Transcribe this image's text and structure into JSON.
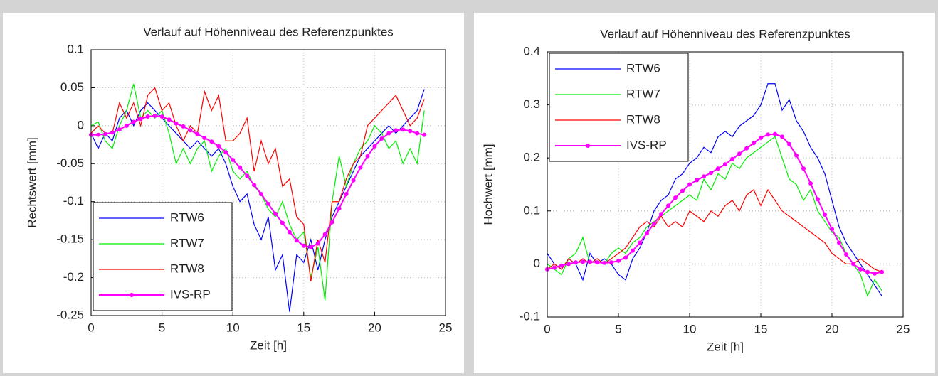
{
  "chart_data": [
    {
      "type": "line",
      "title": "Verlauf auf Höhenniveau des Referenzpunktes",
      "xlabel": "Zeit [h]",
      "ylabel": "Rechtswert [mm]",
      "x": [
        0,
        0.5,
        1,
        1.5,
        2,
        2.5,
        3,
        3.5,
        4,
        4.5,
        5,
        5.5,
        6,
        6.5,
        7,
        7.5,
        8,
        8.5,
        9,
        9.5,
        10,
        10.5,
        11,
        11.5,
        12,
        12.5,
        13,
        13.5,
        14,
        14.5,
        15,
        15.5,
        16,
        16.5,
        17,
        17.5,
        18,
        18.5,
        19,
        19.5,
        20,
        20.5,
        21,
        21.5,
        22,
        22.5,
        23,
        23.5
      ],
      "series": [
        {
          "name": "RTW6",
          "color": "#0000ff",
          "values": [
            -0.01,
            -0.03,
            -0.01,
            -0.02,
            0.01,
            0.02,
            0,
            0.02,
            0.03,
            0.02,
            0.01,
            0,
            -0.01,
            -0.02,
            -0.03,
            -0.02,
            -0.03,
            -0.04,
            -0.03,
            -0.05,
            -0.08,
            -0.1,
            -0.09,
            -0.13,
            -0.15,
            -0.12,
            -0.19,
            -0.17,
            -0.245,
            -0.17,
            -0.18,
            -0.15,
            -0.19,
            -0.15,
            -0.12,
            -0.1,
            -0.08,
            -0.06,
            -0.04,
            -0.03,
            -0.02,
            -0.01,
            0,
            -0.01,
            0,
            0.01,
            0.02,
            0.048
          ]
        },
        {
          "name": "RTW7",
          "color": "#00ee00",
          "values": [
            0,
            0.005,
            -0.02,
            -0.03,
            0,
            0.02,
            0.055,
            0.01,
            0.02,
            0.01,
            0.02,
            -0.01,
            -0.05,
            -0.03,
            -0.05,
            -0.03,
            -0.02,
            -0.06,
            -0.04,
            -0.03,
            -0.06,
            -0.07,
            -0.06,
            -0.08,
            -0.09,
            -0.11,
            -0.12,
            -0.1,
            -0.13,
            -0.15,
            -0.14,
            -0.2,
            -0.16,
            -0.23,
            -0.1,
            -0.04,
            -0.08,
            -0.05,
            -0.03,
            -0.02,
            0,
            -0.01,
            -0.03,
            -0.02,
            -0.05,
            -0.03,
            -0.05,
            0.02
          ]
        },
        {
          "name": "RTW8",
          "color": "#ff0000",
          "values": [
            -0.01,
            0,
            -0.01,
            -0.01,
            0.03,
            0.01,
            0.03,
            0,
            0.04,
            0.05,
            0.02,
            0.03,
            0,
            -0.02,
            0,
            -0.01,
            0.045,
            0.02,
            0.04,
            -0.02,
            -0.02,
            -0.01,
            0.01,
            -0.06,
            -0.02,
            -0.05,
            -0.03,
            -0.08,
            -0.07,
            -0.12,
            -0.13,
            -0.205,
            -0.15,
            -0.18,
            -0.1,
            -0.1,
            -0.07,
            -0.05,
            -0.04,
            0,
            0.01,
            0.02,
            0.03,
            0.04,
            0.02,
            0,
            0.01,
            0.035
          ]
        },
        {
          "name": "IVS-RP",
          "color": "#ff00ff",
          "marker": "o",
          "values": [
            -0.012,
            -0.012,
            -0.011,
            -0.009,
            -0.005,
            0,
            0.005,
            0.009,
            0.012,
            0.013,
            0.012,
            0.008,
            0.003,
            -0.001,
            -0.006,
            -0.011,
            -0.016,
            -0.021,
            -0.027,
            -0.035,
            -0.045,
            -0.055,
            -0.066,
            -0.078,
            -0.09,
            -0.103,
            -0.116,
            -0.128,
            -0.14,
            -0.151,
            -0.158,
            -0.16,
            -0.155,
            -0.143,
            -0.127,
            -0.109,
            -0.09,
            -0.072,
            -0.055,
            -0.04,
            -0.027,
            -0.017,
            -0.01,
            -0.006,
            -0.005,
            -0.007,
            -0.01,
            -0.012
          ]
        }
      ],
      "xlim": [
        0,
        25
      ],
      "xticks": [
        0,
        5,
        10,
        15,
        20,
        25
      ],
      "ylim": [
        -0.25,
        0.1
      ],
      "yticks": [
        -0.25,
        -0.2,
        -0.15,
        -0.1,
        -0.05,
        0,
        0.05,
        0.1
      ],
      "grid": true,
      "legend": "lower left"
    },
    {
      "type": "line",
      "title": "Verlauf auf Höhenniveau des Referenzpunktes",
      "xlabel": "Zeit [h]",
      "ylabel": "Hochwert [mm]",
      "x": [
        0,
        0.5,
        1,
        1.5,
        2,
        2.5,
        3,
        3.5,
        4,
        4.5,
        5,
        5.5,
        6,
        6.5,
        7,
        7.5,
        8,
        8.5,
        9,
        9.5,
        10,
        10.5,
        11,
        11.5,
        12,
        12.5,
        13,
        13.5,
        14,
        14.5,
        15,
        15.5,
        16,
        16.5,
        17,
        17.5,
        18,
        18.5,
        19,
        19.5,
        20,
        20.5,
        21,
        21.5,
        22,
        22.5,
        23,
        23.5
      ],
      "series": [
        {
          "name": "RTW6",
          "color": "#0000ff",
          "values": [
            0.02,
            0,
            -0.01,
            0.01,
            0,
            -0.03,
            0.02,
            0,
            0.01,
            0,
            -0.02,
            -0.03,
            0.01,
            0.03,
            0.06,
            0.1,
            0.12,
            0.13,
            0.16,
            0.17,
            0.19,
            0.2,
            0.22,
            0.21,
            0.24,
            0.25,
            0.24,
            0.26,
            0.27,
            0.28,
            0.3,
            0.34,
            0.34,
            0.29,
            0.31,
            0.27,
            0.25,
            0.22,
            0.2,
            0.17,
            0.12,
            0.07,
            0.04,
            0.02,
            0,
            -0.02,
            -0.04,
            -0.06
          ]
        },
        {
          "name": "RTW7",
          "color": "#00ee00",
          "values": [
            0,
            -0.01,
            -0.02,
            0.01,
            0.02,
            0.05,
            0,
            0.01,
            0,
            0.02,
            0.03,
            0.02,
            0.04,
            0.05,
            0.07,
            0.08,
            0.09,
            0.1,
            0.11,
            0.12,
            0.13,
            0.12,
            0.16,
            0.14,
            0.17,
            0.16,
            0.19,
            0.18,
            0.2,
            0.21,
            0.22,
            0.23,
            0.24,
            0.2,
            0.16,
            0.15,
            0.12,
            0.14,
            0.1,
            0.08,
            0.06,
            0.05,
            0.02,
            0,
            -0.02,
            -0.06,
            -0.03,
            -0.05
          ]
        },
        {
          "name": "RTW8",
          "color": "#ff0000",
          "values": [
            -0.01,
            0,
            -0.01,
            0.01,
            0,
            0.01,
            0,
            0.01,
            0,
            0.01,
            0.02,
            0.03,
            0.05,
            0.07,
            0.08,
            0.07,
            0.09,
            0.07,
            0.08,
            0.07,
            0.1,
            0.09,
            0.08,
            0.1,
            0.09,
            0.11,
            0.12,
            0.1,
            0.13,
            0.14,
            0.11,
            0.14,
            0.12,
            0.1,
            0.09,
            0.08,
            0.07,
            0.06,
            0.05,
            0.04,
            0.02,
            0.01,
            0,
            0,
            0.01,
            0,
            -0.01,
            -0.015
          ]
        },
        {
          "name": "IVS-RP",
          "color": "#ff00ff",
          "marker": "o",
          "values": [
            -0.01,
            -0.007,
            -0.003,
            0,
            0.003,
            0.004,
            0.004,
            0.003,
            0.002,
            0.003,
            0.006,
            0.012,
            0.025,
            0.04,
            0.058,
            0.076,
            0.094,
            0.11,
            0.125,
            0.138,
            0.15,
            0.158,
            0.165,
            0.172,
            0.18,
            0.188,
            0.198,
            0.208,
            0.218,
            0.228,
            0.238,
            0.244,
            0.245,
            0.24,
            0.226,
            0.205,
            0.18,
            0.152,
            0.122,
            0.093,
            0.066,
            0.04,
            0.018,
            0,
            -0.01,
            -0.015,
            -0.018,
            -0.015
          ]
        }
      ],
      "xlim": [
        0,
        25
      ],
      "xticks": [
        0,
        5,
        10,
        15,
        20,
        25
      ],
      "ylim": [
        -0.1,
        0.4
      ],
      "yticks": [
        -0.1,
        0,
        0.1,
        0.2,
        0.3,
        0.4
      ],
      "grid": true,
      "legend": "upper left"
    }
  ]
}
